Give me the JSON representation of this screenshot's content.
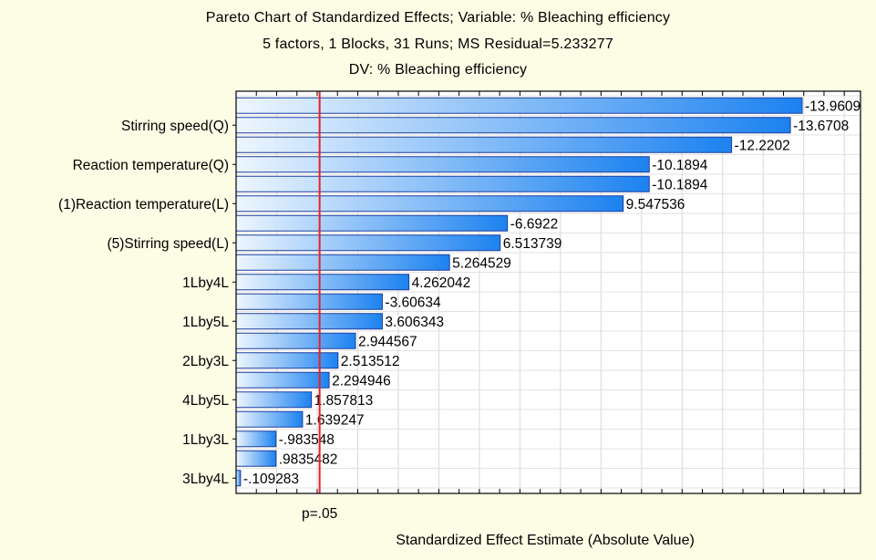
{
  "chart_data": {
    "type": "bar",
    "orientation": "horizontal",
    "title": "Pareto Chart of Standardized Effects; Variable: % Bleaching efficiency",
    "subtitle": "5 factors, 1 Blocks, 31 Runs; MS Residual=5.233277",
    "subtitle2": "DV: % Bleaching efficiency",
    "xlabel": "Standardized Effect Estimate (Absolute Value)",
    "ylabel": "",
    "reference_line": {
      "value": 2.06,
      "label": "p=.05",
      "color": "#e8202a"
    },
    "xlim": [
      0,
      15.4
    ],
    "grid": true,
    "bar_color_light": "#eef6fe",
    "bar_color_dark": "#1c82f0",
    "bar_border": "#1b3f9e",
    "bars": [
      {
        "category": "",
        "value": 13.9609,
        "label": "-13.9609"
      },
      {
        "category": "Stirring speed(Q)",
        "value": 13.6708,
        "label": "-13.6708"
      },
      {
        "category": "",
        "value": 12.2202,
        "label": "-12.2202"
      },
      {
        "category": "Reaction temperature(Q)",
        "value": 10.1894,
        "label": "-10.1894"
      },
      {
        "category": "",
        "value": 10.1894,
        "label": "-10.1894"
      },
      {
        "category": "(1)Reaction temperature(L)",
        "value": 9.547536,
        "label": "9.547536"
      },
      {
        "category": "",
        "value": 6.6922,
        "label": "-6.6922"
      },
      {
        "category": "(5)Stirring speed(L)",
        "value": 6.513739,
        "label": "6.513739"
      },
      {
        "category": "",
        "value": 5.264529,
        "label": "5.264529"
      },
      {
        "category": "1Lby4L",
        "value": 4.262042,
        "label": "4.262042"
      },
      {
        "category": "",
        "value": 3.60634,
        "label": "-3.60634"
      },
      {
        "category": "1Lby5L",
        "value": 3.606343,
        "label": "3.606343"
      },
      {
        "category": "",
        "value": 2.944567,
        "label": "2.944567"
      },
      {
        "category": "2Lby3L",
        "value": 2.513512,
        "label": "2.513512"
      },
      {
        "category": "",
        "value": 2.294946,
        "label": "2.294946"
      },
      {
        "category": "4Lby5L",
        "value": 1.857813,
        "label": "1.857813"
      },
      {
        "category": "",
        "value": 1.639247,
        "label": "1.639247"
      },
      {
        "category": "1Lby3L",
        "value": 0.983548,
        "label": "-.983548"
      },
      {
        "category": "",
        "value": 0.9835482,
        "label": ".9835482"
      },
      {
        "category": "3Lby4L",
        "value": 0.109283,
        "label": "-.109283"
      }
    ]
  }
}
